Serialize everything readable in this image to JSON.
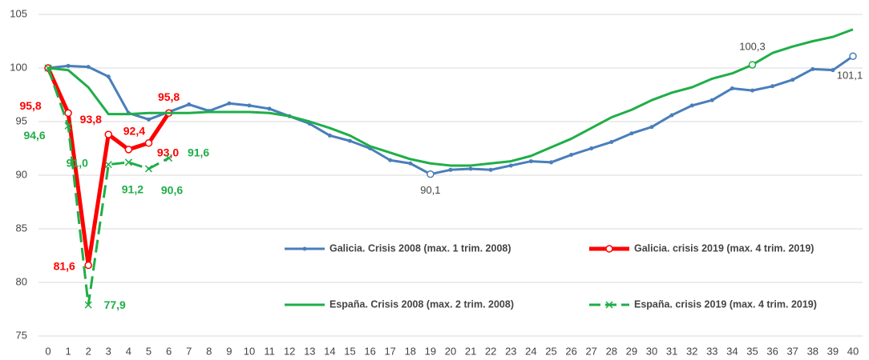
{
  "chart_data": {
    "type": "line",
    "x": [
      0,
      1,
      2,
      3,
      4,
      5,
      6,
      7,
      8,
      9,
      10,
      11,
      12,
      13,
      14,
      15,
      16,
      17,
      18,
      19,
      20,
      21,
      22,
      23,
      24,
      25,
      26,
      27,
      28,
      29,
      30,
      31,
      32,
      33,
      34,
      35,
      36,
      37,
      38,
      39,
      40
    ],
    "xlim": [
      0,
      40
    ],
    "ylim": [
      75,
      105
    ],
    "yticks": [
      75,
      80,
      85,
      90,
      95,
      100,
      105
    ],
    "series": [
      {
        "name": "Galicia. Crisis 2008 (max. 1 trim. 2008)",
        "color": "#4a7ebb",
        "width": 3,
        "marker": "dot",
        "dash": false,
        "values": [
          100,
          100.2,
          100.1,
          99.2,
          95.8,
          95.2,
          95.9,
          96.6,
          96.0,
          96.7,
          96.5,
          96.2,
          95.5,
          94.8,
          93.7,
          93.2,
          92.5,
          91.4,
          91.1,
          90.1,
          90.5,
          90.6,
          90.5,
          90.9,
          91.3,
          91.2,
          91.9,
          92.5,
          93.1,
          93.9,
          94.5,
          95.6,
          96.5,
          97.0,
          98.1,
          97.9,
          98.3,
          98.9,
          99.9,
          99.8,
          101.1
        ],
        "value_labels": [
          null,
          null,
          null,
          null,
          null,
          null,
          null,
          null,
          null,
          null,
          null,
          null,
          null,
          null,
          null,
          null,
          null,
          null,
          null,
          "90,1",
          null,
          null,
          null,
          null,
          null,
          null,
          null,
          null,
          null,
          null,
          null,
          null,
          null,
          null,
          null,
          null,
          null,
          null,
          null,
          null,
          "101,1"
        ]
      },
      {
        "name": "Galicia. crisis 2019 (max. 4 trim. 2019)",
        "color": "#ff0000",
        "width": 5,
        "marker": "circle",
        "dash": false,
        "values": [
          100,
          95.8,
          81.6,
          93.8,
          92.4,
          93.0,
          95.8,
          null,
          null,
          null,
          null,
          null,
          null,
          null,
          null,
          null,
          null,
          null,
          null,
          null,
          null,
          null,
          null,
          null,
          null,
          null,
          null,
          null,
          null,
          null,
          null,
          null,
          null,
          null,
          null,
          null,
          null,
          null,
          null,
          null,
          null
        ],
        "value_labels": [
          null,
          "95,8",
          "81,6",
          "93,8",
          "92,4",
          "93,0",
          "95,8",
          null,
          null,
          null,
          null,
          null,
          null,
          null,
          null,
          null,
          null,
          null,
          null,
          null,
          null,
          null,
          null,
          null,
          null,
          null,
          null,
          null,
          null,
          null,
          null,
          null,
          null,
          null,
          null,
          null,
          null,
          null,
          null,
          null,
          null
        ]
      },
      {
        "name": "España. Crisis 2008 (max. 2 trim. 2008)",
        "color": "#1fae48",
        "width": 3,
        "marker": "none",
        "dash": false,
        "values": [
          100,
          99.8,
          98.2,
          95.7,
          95.7,
          95.8,
          95.8,
          95.8,
          95.9,
          95.9,
          95.9,
          95.8,
          95.5,
          95.0,
          94.4,
          93.7,
          92.7,
          92.1,
          91.5,
          91.1,
          90.9,
          90.9,
          91.1,
          91.3,
          91.8,
          92.6,
          93.4,
          94.4,
          95.4,
          96.1,
          97.0,
          97.7,
          98.2,
          99.0,
          99.5,
          100.3,
          101.4,
          102.0,
          102.5,
          102.9,
          103.6
        ],
        "value_labels": [
          null,
          null,
          null,
          null,
          null,
          null,
          null,
          null,
          null,
          null,
          null,
          null,
          null,
          null,
          null,
          null,
          null,
          null,
          null,
          null,
          null,
          null,
          null,
          null,
          null,
          null,
          null,
          null,
          null,
          null,
          null,
          null,
          null,
          null,
          null,
          "100,3",
          null,
          null,
          null,
          null,
          null
        ]
      },
      {
        "name": "España. crisis 2019 (max. 4 trim. 2019)",
        "color": "#1fae48",
        "width": 3,
        "marker": "x",
        "dash": true,
        "values": [
          100,
          94.6,
          77.9,
          91.0,
          91.2,
          90.6,
          91.6,
          null,
          null,
          null,
          null,
          null,
          null,
          null,
          null,
          null,
          null,
          null,
          null,
          null,
          null,
          null,
          null,
          null,
          null,
          null,
          null,
          null,
          null,
          null,
          null,
          null,
          null,
          null,
          null,
          null,
          null,
          null,
          null,
          null,
          null
        ],
        "value_labels": [
          null,
          "94,6",
          "77,9",
          "91,0",
          "91,2",
          "90,6",
          "91,6",
          null,
          null,
          null,
          null,
          null,
          null,
          null,
          null,
          null,
          null,
          null,
          null,
          null,
          null,
          null,
          null,
          null,
          null,
          null,
          null,
          null,
          null,
          null,
          null,
          null,
          null,
          null,
          null,
          null,
          null,
          null,
          null,
          null,
          null
        ]
      }
    ],
    "grid": true
  }
}
